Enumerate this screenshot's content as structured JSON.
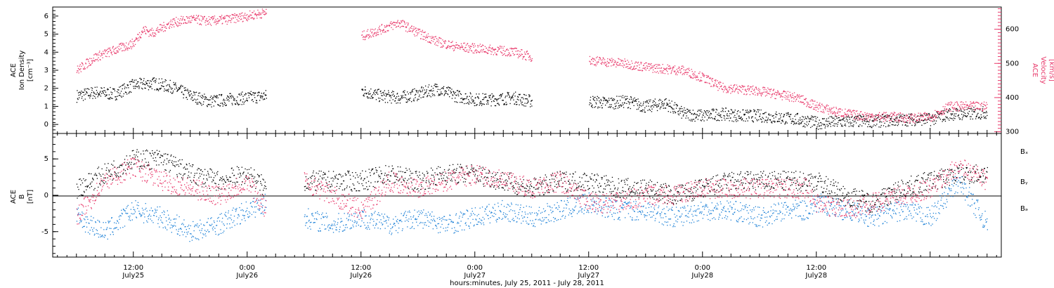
{
  "colors": {
    "black": "#000000",
    "pink": "#e8386a",
    "blue": "#1a7fd6"
  },
  "chart_data": [
    {
      "type": "scatter",
      "panel": "top",
      "left_axis": {
        "label_lines": [
          "ACE",
          "Ion Density",
          "[cm⁻³]"
        ],
        "ylim": [
          -0.5,
          6.5
        ],
        "ticks": [
          0,
          1,
          2,
          3,
          4,
          5,
          6
        ]
      },
      "right_axis": {
        "label_lines": [
          "ACE",
          "Velocity",
          "[km/s]"
        ],
        "ylim": [
          295,
          665
        ],
        "ticks": [
          300,
          400,
          500,
          600
        ]
      },
      "series": [
        {
          "axis": "left",
          "color": "#000000",
          "points": [
            [
              -6,
              1.6
            ],
            [
              -4,
              1.8
            ],
            [
              -2,
              1.7
            ],
            [
              0,
              2.2
            ],
            [
              2,
              2.3
            ],
            [
              4,
              2.1
            ],
            [
              6,
              1.6
            ],
            [
              8,
              1.3
            ],
            [
              10,
              1.4
            ],
            [
              12,
              1.5
            ],
            [
              14,
              1.6
            ],
            [
              24,
              1.9
            ],
            [
              26,
              1.6
            ],
            [
              28,
              1.5
            ],
            [
              30,
              1.7
            ],
            [
              32,
              2.0
            ],
            [
              34,
              1.6
            ],
            [
              36,
              1.4
            ],
            [
              38,
              1.4
            ],
            [
              40,
              1.5
            ],
            [
              42,
              1.3
            ],
            [
              48,
              1.3
            ],
            [
              50,
              1.2
            ],
            [
              52,
              1.3
            ],
            [
              54,
              1.0
            ],
            [
              56,
              1.2
            ],
            [
              58,
              0.6
            ],
            [
              60,
              0.5
            ],
            [
              62,
              0.6
            ],
            [
              64,
              0.5
            ],
            [
              66,
              0.5
            ],
            [
              68,
              0.4
            ],
            [
              70,
              0.3
            ],
            [
              72,
              0.1
            ],
            [
              74,
              0.15
            ],
            [
              76,
              0.2
            ],
            [
              78,
              0.2
            ],
            [
              80,
              0.25
            ],
            [
              82,
              0.3
            ],
            [
              84,
              0.3
            ],
            [
              86,
              0.6
            ],
            [
              88,
              0.6
            ],
            [
              90,
              0.7
            ]
          ]
        },
        {
          "axis": "right",
          "color": "#e8386a",
          "points": [
            [
              -6,
              480
            ],
            [
              -4,
              520
            ],
            [
              -2,
              540
            ],
            [
              0,
              560
            ],
            [
              1,
              600
            ],
            [
              2,
              590
            ],
            [
              4,
              620
            ],
            [
              6,
              630
            ],
            [
              8,
              625
            ],
            [
              10,
              630
            ],
            [
              12,
              640
            ],
            [
              14,
              650
            ],
            [
              24,
              580
            ],
            [
              26,
              600
            ],
            [
              28,
              620
            ],
            [
              30,
              590
            ],
            [
              32,
              565
            ],
            [
              34,
              550
            ],
            [
              36,
              545
            ],
            [
              38,
              540
            ],
            [
              40,
              535
            ],
            [
              42,
              520
            ],
            [
              48,
              510
            ],
            [
              50,
              505
            ],
            [
              52,
              500
            ],
            [
              54,
              490
            ],
            [
              56,
              485
            ],
            [
              58,
              480
            ],
            [
              60,
              460
            ],
            [
              62,
              430
            ],
            [
              64,
              425
            ],
            [
              66,
              420
            ],
            [
              68,
              410
            ],
            [
              70,
              400
            ],
            [
              72,
              375
            ],
            [
              74,
              360
            ],
            [
              76,
              350
            ],
            [
              78,
              345
            ],
            [
              80,
              345
            ],
            [
              82,
              340
            ],
            [
              84,
              345
            ],
            [
              86,
              375
            ],
            [
              88,
              375
            ],
            [
              90,
              375
            ]
          ]
        }
      ]
    },
    {
      "type": "scatter",
      "panel": "bottom",
      "left_axis": {
        "label_lines": [
          "ACE",
          "B",
          "[nT]"
        ],
        "ylim": [
          -8.5,
          8.5
        ],
        "ticks": [
          -5,
          0,
          5
        ]
      },
      "legend": [
        {
          "label": "Bₓ",
          "color": "#000000"
        },
        {
          "label": "Bᵧ",
          "color": "#1a7fd6"
        },
        {
          "label": "Bₔ",
          "color": "#e8386a"
        }
      ],
      "series": [
        {
          "name": "Bx",
          "color": "#000000",
          "points": [
            [
              -6,
              1
            ],
            [
              -3,
              3
            ],
            [
              0,
              5
            ],
            [
              3,
              5
            ],
            [
              6,
              3
            ],
            [
              9,
              2
            ],
            [
              12,
              3
            ],
            [
              14,
              1
            ],
            [
              18,
              2
            ],
            [
              21,
              2
            ],
            [
              24,
              2
            ],
            [
              27,
              3
            ],
            [
              30,
              2
            ],
            [
              33,
              3
            ],
            [
              36,
              3
            ],
            [
              39,
              2
            ],
            [
              42,
              1
            ],
            [
              45,
              2
            ],
            [
              48,
              2
            ],
            [
              51,
              1
            ],
            [
              54,
              1
            ],
            [
              57,
              0
            ],
            [
              60,
              1
            ],
            [
              63,
              2
            ],
            [
              66,
              2
            ],
            [
              69,
              2
            ],
            [
              71,
              2
            ],
            [
              72,
              2
            ],
            [
              75,
              0
            ],
            [
              78,
              -1
            ],
            [
              81,
              1
            ],
            [
              84,
              2
            ],
            [
              87,
              3
            ],
            [
              90,
              3
            ]
          ]
        },
        {
          "name": "By",
          "color": "#1a7fd6",
          "points": [
            [
              -6,
              -3
            ],
            [
              -3,
              -5
            ],
            [
              0,
              -2
            ],
            [
              3,
              -3
            ],
            [
              6,
              -5
            ],
            [
              9,
              -4
            ],
            [
              12,
              -2
            ],
            [
              14,
              -1
            ],
            [
              18,
              -3
            ],
            [
              21,
              -4
            ],
            [
              24,
              -3
            ],
            [
              27,
              -4
            ],
            [
              30,
              -3
            ],
            [
              33,
              -4
            ],
            [
              36,
              -3
            ],
            [
              39,
              -2
            ],
            [
              42,
              -3
            ],
            [
              45,
              -2
            ],
            [
              48,
              -1
            ],
            [
              51,
              -2
            ],
            [
              54,
              -2
            ],
            [
              57,
              -3
            ],
            [
              60,
              -2
            ],
            [
              63,
              -2
            ],
            [
              66,
              -3
            ],
            [
              69,
              -2
            ],
            [
              71,
              -2
            ],
            [
              72,
              -1
            ],
            [
              75,
              -2
            ],
            [
              78,
              -3
            ],
            [
              81,
              -2
            ],
            [
              84,
              -3
            ],
            [
              87,
              2
            ],
            [
              90,
              -4
            ]
          ]
        },
        {
          "name": "Bz",
          "color": "#e8386a",
          "points": [
            [
              -6,
              -3
            ],
            [
              -3,
              2
            ],
            [
              0,
              4
            ],
            [
              3,
              2
            ],
            [
              6,
              1
            ],
            [
              9,
              0
            ],
            [
              12,
              2
            ],
            [
              14,
              -2
            ],
            [
              18,
              2
            ],
            [
              21,
              0
            ],
            [
              24,
              -2
            ],
            [
              27,
              2
            ],
            [
              30,
              1
            ],
            [
              33,
              2
            ],
            [
              36,
              3
            ],
            [
              39,
              2
            ],
            [
              42,
              1
            ],
            [
              45,
              2
            ],
            [
              48,
              -1
            ],
            [
              51,
              -1
            ],
            [
              54,
              0
            ],
            [
              57,
              0
            ],
            [
              60,
              1
            ],
            [
              63,
              1
            ],
            [
              66,
              1
            ],
            [
              69,
              1
            ],
            [
              71,
              1
            ],
            [
              72,
              -1
            ],
            [
              75,
              -2
            ],
            [
              78,
              -1
            ],
            [
              81,
              0
            ],
            [
              84,
              1
            ],
            [
              87,
              4
            ],
            [
              90,
              2
            ]
          ]
        }
      ]
    }
  ],
  "x_axis": {
    "tick_labels": [
      {
        "h": 0,
        "time": "12:00",
        "day": "July25"
      },
      {
        "h": 12,
        "time": "0:00",
        "day": "July26"
      },
      {
        "h": 24,
        "time": "12:00",
        "day": "July26"
      },
      {
        "h": 36,
        "time": "0:00",
        "day": "July27"
      },
      {
        "h": 48,
        "time": "12:00",
        "day": "July27"
      },
      {
        "h": 60,
        "time": "0:00",
        "day": "July28"
      },
      {
        "h": 72,
        "time": "12:00",
        "day": "July28"
      }
    ],
    "title": "hours:minutes, July 25, 2011 - July 28, 2011"
  }
}
